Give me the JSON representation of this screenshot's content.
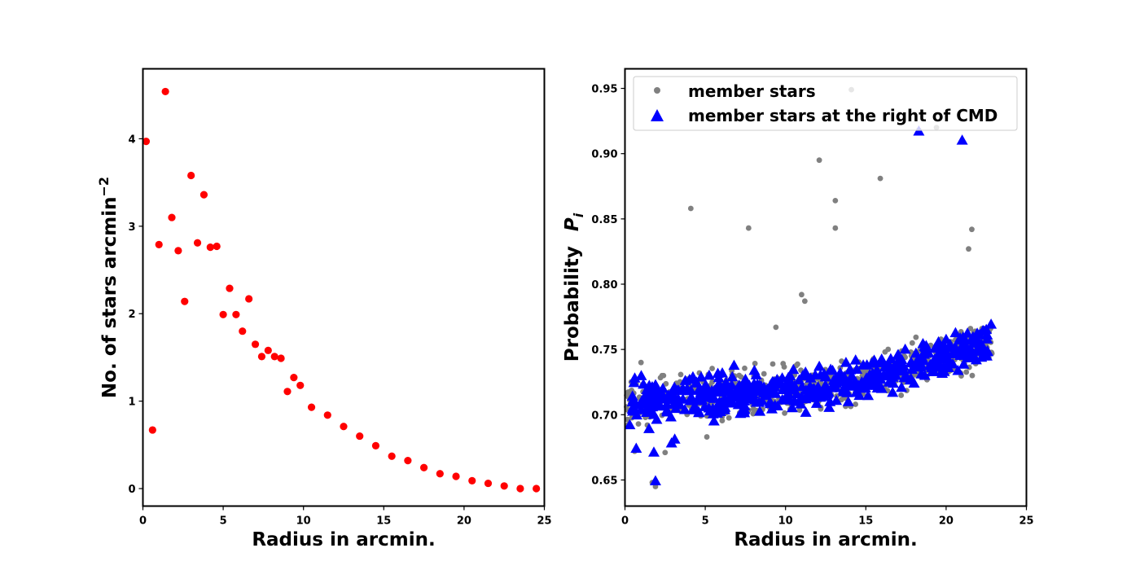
{
  "chart_data": [
    {
      "type": "scatter",
      "xlabel": "Radius in arcmin.",
      "ylabel": "No. of stars arcmin",
      "ylabel_superscript": "−2",
      "xlim": [
        0,
        25
      ],
      "ylim": [
        -0.2,
        4.8
      ],
      "xticks": [
        0,
        5,
        10,
        15,
        20,
        25
      ],
      "xtick_labels": [
        "0",
        "5",
        "10",
        "15",
        "20",
        "25"
      ],
      "yticks": [
        0,
        1,
        2,
        3,
        4
      ],
      "ytick_labels": [
        "0",
        "1",
        "2",
        "3",
        "4"
      ],
      "grid": false,
      "series": [
        {
          "color": "#ff0000",
          "marker": "circle",
          "points": [
            [
              0.2,
              3.97
            ],
            [
              0.6,
              0.67
            ],
            [
              1.0,
              2.79
            ],
            [
              1.4,
              4.54
            ],
            [
              1.8,
              3.1
            ],
            [
              2.2,
              2.72
            ],
            [
              2.6,
              2.14
            ],
            [
              3.0,
              3.58
            ],
            [
              3.4,
              2.81
            ],
            [
              3.8,
              3.36
            ],
            [
              4.2,
              2.76
            ],
            [
              4.6,
              2.77
            ],
            [
              5.0,
              1.99
            ],
            [
              5.4,
              2.29
            ],
            [
              5.8,
              1.99
            ],
            [
              6.2,
              1.8
            ],
            [
              6.6,
              2.17
            ],
            [
              7.0,
              1.65
            ],
            [
              7.4,
              1.51
            ],
            [
              7.8,
              1.58
            ],
            [
              8.2,
              1.51
            ],
            [
              8.6,
              1.49
            ],
            [
              9.0,
              1.11
            ],
            [
              9.4,
              1.27
            ],
            [
              9.8,
              1.18
            ],
            [
              10.5,
              0.93
            ],
            [
              11.5,
              0.84
            ],
            [
              12.5,
              0.71
            ],
            [
              13.5,
              0.6
            ],
            [
              14.5,
              0.49
            ],
            [
              15.5,
              0.37
            ],
            [
              16.5,
              0.32
            ],
            [
              17.5,
              0.24
            ],
            [
              18.5,
              0.17
            ],
            [
              19.5,
              0.14
            ],
            [
              20.5,
              0.09
            ],
            [
              21.5,
              0.06
            ],
            [
              22.5,
              0.03
            ],
            [
              23.5,
              0.0
            ],
            [
              24.5,
              0.0
            ]
          ]
        }
      ]
    },
    {
      "type": "scatter",
      "xlabel": "Radius in arcmin.",
      "ylabel": "Probability",
      "ylabel_symbol": "P",
      "ylabel_subscript": "i",
      "xlim": [
        0,
        25
      ],
      "ylim": [
        0.63,
        0.965
      ],
      "xticks": [
        0,
        5,
        10,
        15,
        20,
        25
      ],
      "xtick_labels": [
        "0",
        "5",
        "10",
        "15",
        "20",
        "25"
      ],
      "yticks": [
        0.65,
        0.7,
        0.75,
        0.8,
        0.85,
        0.9,
        0.95
      ],
      "ytick_labels": [
        "0.65",
        "0.70",
        "0.75",
        "0.80",
        "0.85",
        "0.90",
        "0.95"
      ],
      "grid": false,
      "legend_position": "top-right",
      "series": [
        {
          "name": "member stars",
          "color": "#808080",
          "marker": "circle",
          "note_points": "dense cloud of member stars from r≈0 to r≈23 arcmin; probability rising from ≈0.71 to ≈0.76 with scatter ±0.02",
          "outliers": [
            [
              4.1,
              0.858
            ],
            [
              7.7,
              0.843
            ],
            [
              9.4,
              0.767
            ],
            [
              11.0,
              0.792
            ],
            [
              11.2,
              0.787
            ],
            [
              12.1,
              0.895
            ],
            [
              13.1,
              0.864
            ],
            [
              13.1,
              0.843
            ],
            [
              14.1,
              0.949
            ],
            [
              15.9,
              0.881
            ],
            [
              18.3,
              0.918
            ],
            [
              19.4,
              0.92
            ],
            [
              21.4,
              0.827
            ],
            [
              21.6,
              0.842
            ],
            [
              1.0,
              0.74
            ],
            [
              1.9,
              0.645
            ],
            [
              1.7,
              0.648
            ],
            [
              2.5,
              0.671
            ],
            [
              0.1,
              0.706
            ],
            [
              0.3,
              0.711
            ],
            [
              0.6,
              0.672
            ],
            [
              5.1,
              0.683
            ]
          ]
        },
        {
          "name": "member stars at the right of CMD",
          "color": "#0000ff",
          "marker": "triangle",
          "outliers": [
            [
              0.3,
              0.692
            ],
            [
              0.7,
              0.674
            ],
            [
              1.8,
              0.671
            ],
            [
              1.9,
              0.649
            ],
            [
              1.5,
              0.689
            ],
            [
              2.9,
              0.678
            ],
            [
              3.1,
              0.681
            ],
            [
              18.3,
              0.917
            ],
            [
              21.0,
              0.91
            ],
            [
              22.8,
              0.769
            ],
            [
              22.5,
              0.765
            ],
            [
              21.8,
              0.755
            ]
          ]
        }
      ]
    }
  ]
}
